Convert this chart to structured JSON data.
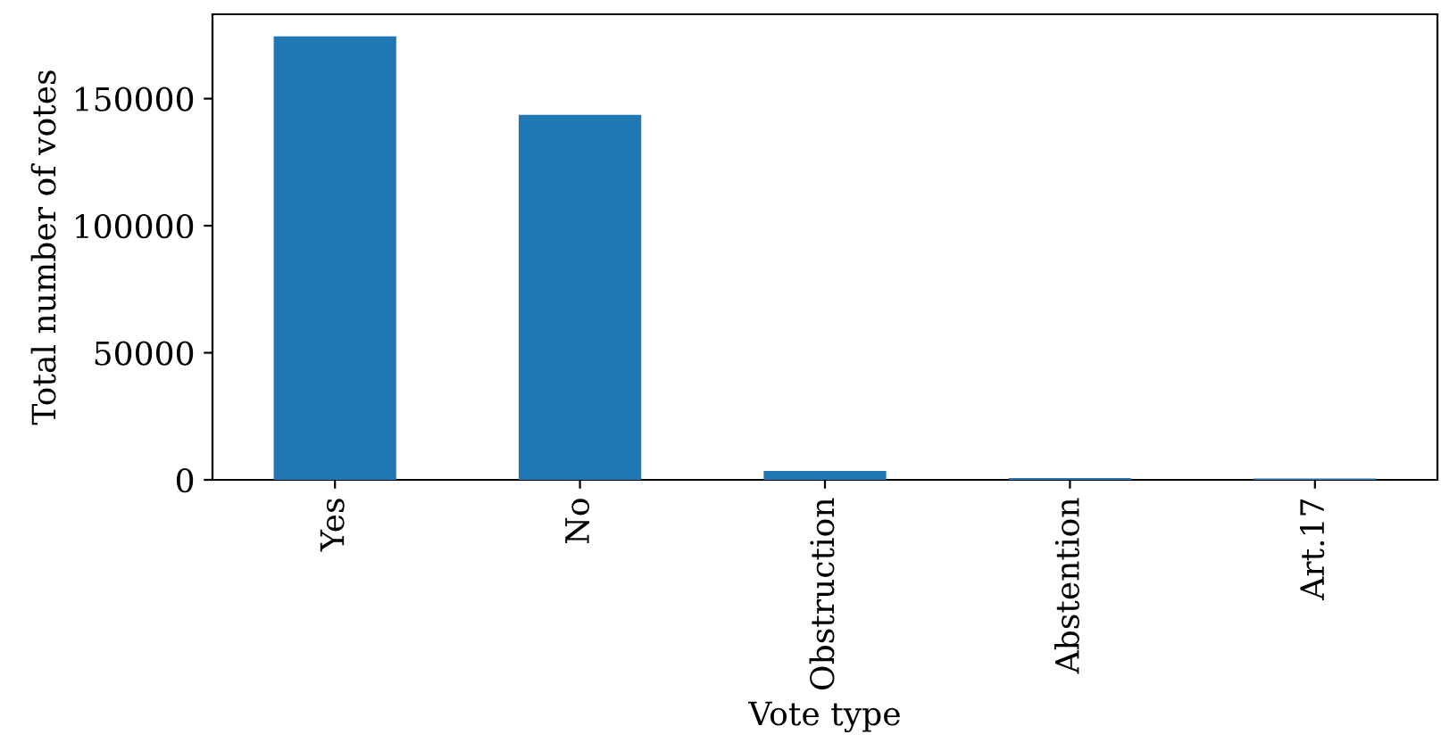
{
  "chart_data": {
    "type": "bar",
    "xlabel": "Vote type",
    "ylabel": "Total number of votes",
    "categories": [
      "Yes",
      "No",
      "Obstruction",
      "Abstention",
      "Art.17"
    ],
    "values": [
      174500,
      143600,
      3500,
      700,
      500
    ],
    "color": "#1f77b4",
    "ylim": [
      0,
      183200
    ],
    "yticks": [
      0,
      50000,
      100000,
      150000
    ],
    "grid": false,
    "legend": false
  }
}
